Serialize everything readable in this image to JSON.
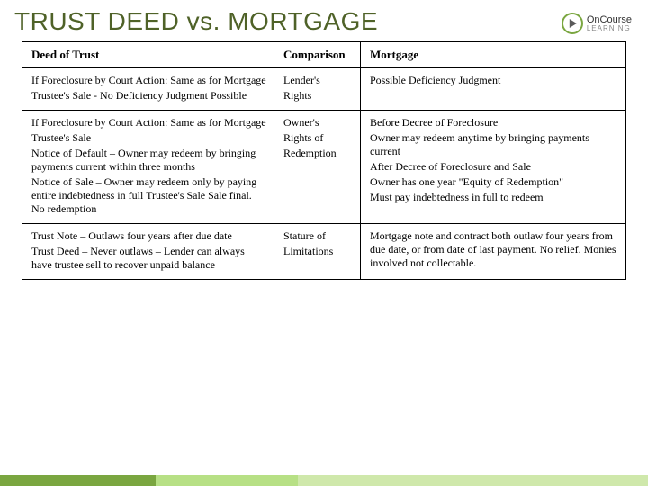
{
  "title": "TRUST DEED vs. MORTGAGE",
  "logo": {
    "top": "OnCourse",
    "bottom": "LEARNING"
  },
  "columns": {
    "left": "Deed of Trust",
    "mid": "Comparison",
    "right": "Mortgage"
  },
  "rows": [
    {
      "left": [
        "If Foreclosure by Court Action: Same as for Mortgage",
        "Trustee's Sale - No Deficiency Judgment Possible"
      ],
      "mid": [
        "Lender's",
        "Rights"
      ],
      "right": [
        "Possible Deficiency Judgment"
      ]
    },
    {
      "left": [
        "If Foreclosure by Court Action: Same as for Mortgage",
        "Trustee's Sale",
        "Notice of Default – Owner may redeem by bringing payments current within three months",
        "Notice of Sale – Owner may redeem only by paying entire indebtedness in full Trustee's Sale Sale final. No redemption"
      ],
      "mid": [
        "Owner's",
        "Rights of",
        "Redemption"
      ],
      "right": [
        "Before Decree of Foreclosure",
        "Owner may redeem anytime by bringing payments current",
        "After Decree of Foreclosure and Sale",
        "Owner has one year \"Equity of Redemption\"",
        "Must pay indebtedness in full to redeem"
      ]
    },
    {
      "left": [
        "Trust Note – Outlaws four years after due date",
        "Trust Deed – Never outlaws – Lender can always have trustee sell to recover unpaid balance"
      ],
      "mid": [
        "Stature of",
        "Limitations"
      ],
      "right": [
        "Mortgage note and contract both outlaw four years from due date, or from date of last payment. No relief. Monies involved not collectable."
      ]
    }
  ],
  "colors": {
    "title": "#4f6228",
    "border": "#000000",
    "footer_segments": [
      "#7aa640",
      "#b7e085",
      "#cfe8ab"
    ]
  }
}
